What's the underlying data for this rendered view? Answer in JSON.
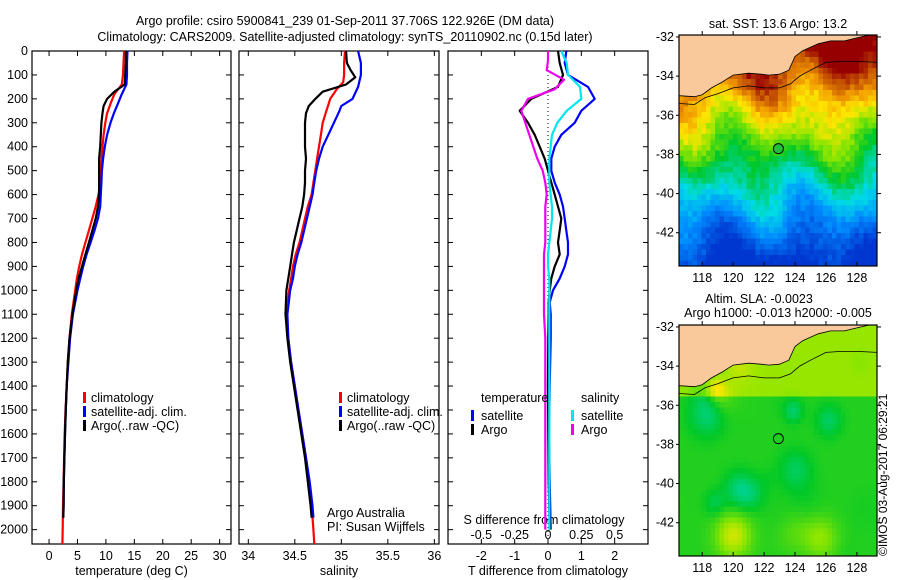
{
  "header": {
    "title_line1": "Argo profile: csiro 5900841_239 01-Sep-2011 37.706S 122.926E (DM data)",
    "title_line2": "Climatology: CARS2009. Satellite-adjusted climatology: synTS_20110902.nc (0.15d later)"
  },
  "colors": {
    "climatology": "#ff0000",
    "satellite": "#0000ff",
    "argo": "#000000",
    "sal_satellite": "#00e5ee",
    "sal_argo": "#ee00ee",
    "land": "#f9c89b"
  },
  "chart_data": [
    {
      "id": "temperature",
      "type": "line",
      "xlabel": "temperature (deg C)",
      "ylabel": "",
      "xlim": [
        -3,
        32
      ],
      "ylim": [
        2060,
        0
      ],
      "xticks": [
        0,
        5,
        10,
        15,
        20,
        25,
        30
      ],
      "yticks": [
        0,
        100,
        200,
        300,
        400,
        500,
        600,
        700,
        800,
        900,
        1000,
        1100,
        1200,
        1300,
        1400,
        1500,
        1600,
        1700,
        1800,
        1900,
        2000
      ],
      "legend": [
        "climatology",
        "satellite-adj. clim.",
        "Argo(..raw -QC)"
      ],
      "legend_placement": "center",
      "series": [
        {
          "name": "climatology",
          "color_key": "climatology",
          "depth": [
            0,
            50,
            100,
            140,
            180,
            220,
            260,
            300,
            350,
            400,
            450,
            500,
            550,
            600,
            650,
            700,
            750,
            800,
            850,
            900,
            950,
            1000,
            1100,
            1200,
            1300,
            1400,
            1500,
            1600,
            1700,
            1800,
            1900,
            2000,
            2060
          ],
          "values": [
            13.2,
            13.1,
            13.0,
            12.8,
            11.5,
            10.8,
            10.2,
            9.9,
            9.6,
            9.4,
            9.2,
            9.1,
            9.0,
            8.7,
            8.2,
            7.6,
            7.0,
            6.4,
            5.8,
            5.3,
            4.9,
            4.6,
            4.0,
            3.6,
            3.3,
            3.1,
            2.9,
            2.75,
            2.65,
            2.55,
            2.45,
            2.4,
            2.35
          ]
        },
        {
          "name": "satellite-adj. clim.",
          "color_key": "satellite",
          "depth": [
            0,
            50,
            100,
            140,
            180,
            220,
            260,
            300,
            350,
            400,
            450,
            500,
            550,
            600,
            650,
            700,
            750,
            800,
            850,
            900,
            950,
            1000,
            1100,
            1200,
            1300,
            1400,
            1500,
            1600,
            1700,
            1800,
            1900,
            1950
          ],
          "values": [
            13.8,
            13.7,
            13.7,
            13.6,
            12.8,
            12.1,
            11.4,
            10.8,
            10.2,
            9.8,
            9.5,
            9.3,
            9.2,
            9.1,
            9.0,
            8.6,
            8.0,
            7.3,
            6.6,
            6.0,
            5.5,
            5.0,
            4.2,
            3.7,
            3.4,
            3.1,
            2.95,
            2.8,
            2.7,
            2.6,
            2.55,
            2.5
          ]
        },
        {
          "name": "Argo(..raw -QC)",
          "color_key": "argo",
          "depth": [
            0,
            50,
            100,
            140,
            170,
            200,
            230,
            260,
            300,
            350,
            400,
            450,
            500,
            550,
            600,
            650,
            700,
            750,
            800,
            850,
            900,
            950,
            1000,
            1100,
            1200,
            1300,
            1400,
            1500,
            1600,
            1700,
            1800,
            1900,
            1950
          ],
          "values": [
            13.5,
            13.5,
            13.4,
            13.3,
            11.5,
            10.2,
            9.6,
            9.4,
            9.2,
            9.1,
            9.0,
            8.8,
            8.8,
            8.8,
            8.8,
            8.6,
            8.2,
            7.6,
            7.0,
            6.4,
            5.8,
            5.2,
            4.8,
            4.1,
            3.6,
            3.3,
            3.1,
            2.95,
            2.8,
            2.7,
            2.6,
            2.55,
            2.5
          ]
        }
      ]
    },
    {
      "id": "salinity",
      "type": "line",
      "xlabel": "salinity",
      "xlim": [
        33.9,
        36.05
      ],
      "ylim": [
        2060,
        0
      ],
      "xticks": [
        34,
        34.5,
        35,
        35.5,
        36
      ],
      "xtick_labels": [
        "34",
        "34.5",
        "35",
        "35.5",
        "36"
      ],
      "legend": [
        "climatology",
        "satellite-adj. clim.",
        "Argo(..raw -QC)"
      ],
      "legend_placement": "center-right",
      "annotation": [
        "Argo Australia",
        "PI: Susan Wijffels"
      ],
      "series": [
        {
          "name": "climatology",
          "color_key": "climatology",
          "depth": [
            0,
            50,
            100,
            130,
            160,
            200,
            250,
            300,
            350,
            400,
            450,
            500,
            550,
            600,
            650,
            700,
            750,
            800,
            850,
            900,
            950,
            1000,
            1100,
            1200,
            1300,
            1400,
            1500,
            1600,
            1700,
            1800,
            1900,
            2000,
            2060
          ],
          "values": [
            35.04,
            35.03,
            35.03,
            35.02,
            34.95,
            34.88,
            34.84,
            34.8,
            34.78,
            34.76,
            34.74,
            34.72,
            34.7,
            34.68,
            34.64,
            34.61,
            34.58,
            34.55,
            34.51,
            34.48,
            34.46,
            34.44,
            34.41,
            34.43,
            34.46,
            34.5,
            34.54,
            34.58,
            34.62,
            34.65,
            34.68,
            34.7,
            34.71
          ]
        },
        {
          "name": "satellite-adj. clim.",
          "color_key": "satellite",
          "depth": [
            0,
            50,
            100,
            150,
            200,
            230,
            250,
            300,
            350,
            400,
            450,
            500,
            550,
            600,
            650,
            700,
            750,
            800,
            850,
            900,
            950,
            1000,
            1100,
            1200,
            1300,
            1400,
            1500,
            1600,
            1700,
            1800,
            1900,
            1950
          ],
          "values": [
            35.18,
            35.21,
            35.21,
            35.18,
            35.12,
            35.0,
            34.98,
            34.92,
            34.86,
            34.8,
            34.76,
            34.73,
            34.71,
            34.69,
            34.66,
            34.63,
            34.6,
            34.57,
            34.53,
            34.5,
            34.48,
            34.45,
            34.42,
            34.43,
            34.46,
            34.5,
            34.54,
            34.58,
            34.62,
            34.66,
            34.69,
            34.7
          ]
        },
        {
          "name": "Argo(..raw -QC)",
          "color_key": "argo",
          "depth": [
            0,
            50,
            80,
            110,
            140,
            170,
            200,
            230,
            260,
            300,
            350,
            400,
            450,
            500,
            550,
            600,
            650,
            700,
            750,
            800,
            850,
            900,
            950,
            1000,
            1100,
            1200,
            1300,
            1400,
            1500,
            1600,
            1700,
            1800,
            1900,
            1950
          ],
          "values": [
            35.05,
            35.06,
            35.1,
            35.15,
            35.05,
            34.8,
            34.72,
            34.65,
            34.62,
            34.61,
            34.61,
            34.61,
            34.62,
            34.61,
            34.61,
            34.6,
            34.58,
            34.55,
            34.52,
            34.49,
            34.47,
            34.45,
            34.43,
            34.41,
            34.4,
            34.42,
            34.45,
            34.49,
            34.53,
            34.57,
            34.61,
            34.64,
            34.67,
            34.68
          ]
        }
      ]
    },
    {
      "id": "difference",
      "type": "line",
      "xlabel": "T difference from climatology",
      "xlabel_top": "S difference from climatology",
      "xlim": [
        -3,
        3
      ],
      "ylim": [
        2060,
        0
      ],
      "xticks": [
        -2,
        -1,
        0,
        1,
        2
      ],
      "s_xlim": [
        -0.75,
        0.75
      ],
      "s_xticks": [
        -0.5,
        -0.25,
        0,
        0.25,
        0.5
      ],
      "s_xtick_labels": [
        "-0.5",
        "-0.25",
        "0",
        "0.25",
        "0.5"
      ],
      "zero_line": "dotted",
      "legend_groups": [
        {
          "title": "temperature",
          "items": [
            "satellite",
            "Argo"
          ]
        },
        {
          "title": "salinity",
          "items": [
            "satellite",
            "Argo"
          ]
        }
      ],
      "series": [
        {
          "name": "temperature satellite",
          "color_key": "satellite",
          "axis": "T",
          "depth": [
            0,
            50,
            100,
            150,
            200,
            250,
            300,
            350,
            400,
            450,
            500,
            550,
            600,
            650,
            700,
            750,
            800,
            850,
            900,
            950,
            1000,
            1050,
            1100,
            1200,
            1400,
            1600,
            1800,
            2000
          ],
          "values": [
            0.55,
            0.5,
            0.6,
            1.2,
            1.4,
            1.0,
            0.8,
            0.4,
            0.2,
            0.1,
            0.1,
            0.2,
            0.35,
            0.45,
            0.5,
            0.55,
            0.6,
            0.6,
            0.5,
            0.35,
            0.15,
            0.05,
            0.08,
            0.08,
            0.05,
            0.03,
            0.05,
            0.08
          ]
        },
        {
          "name": "temperature Argo",
          "color_key": "argo",
          "axis": "T",
          "depth": [
            0,
            50,
            100,
            150,
            200,
            250,
            300,
            350,
            400,
            450,
            500,
            550,
            600,
            650,
            700,
            750,
            800,
            850,
            900,
            950,
            1000,
            1050,
            1100,
            1200,
            1400,
            1600,
            1800,
            2000
          ],
          "values": [
            0.3,
            0.35,
            0.45,
            0.3,
            -0.5,
            -0.85,
            -0.6,
            -0.4,
            -0.25,
            -0.1,
            0.0,
            0.1,
            0.2,
            0.3,
            0.4,
            0.35,
            0.3,
            0.35,
            0.2,
            0.1,
            0.05,
            0.02,
            0.02,
            0.01,
            0.0,
            0.01,
            0.02,
            0.05
          ]
        },
        {
          "name": "salinity satellite",
          "color_key": "sal_satellite",
          "axis": "S",
          "depth": [
            0,
            50,
            100,
            150,
            200,
            250,
            300,
            350,
            400,
            450,
            500,
            550,
            600,
            650,
            700,
            750,
            800,
            850,
            900,
            950,
            1000,
            1100,
            1200,
            1400,
            1600,
            1800,
            2000
          ],
          "values": [
            0.1,
            0.14,
            0.15,
            0.24,
            0.25,
            0.14,
            0.07,
            0.03,
            0.02,
            0.01,
            0.01,
            0.01,
            0.02,
            0.03,
            0.03,
            0.02,
            0.01,
            0.0,
            0.0,
            0.01,
            0.01,
            0.01,
            0.01,
            0.01,
            0.01,
            0.01,
            0.01
          ]
        },
        {
          "name": "salinity Argo",
          "color_key": "sal_argo",
          "axis": "S",
          "depth": [
            0,
            40,
            80,
            120,
            160,
            200,
            250,
            300,
            350,
            400,
            450,
            500,
            550,
            600,
            650,
            700,
            750,
            800,
            850,
            900,
            950,
            1000,
            1100,
            1200,
            1400,
            1600,
            1800,
            2000
          ],
          "values": [
            0.0,
            0.0,
            -0.01,
            0.12,
            0.05,
            -0.15,
            -0.2,
            -0.17,
            -0.14,
            -0.11,
            -0.08,
            -0.04,
            -0.02,
            -0.01,
            -0.02,
            -0.02,
            -0.02,
            -0.02,
            -0.03,
            -0.03,
            -0.03,
            -0.03,
            -0.03,
            -0.02,
            -0.02,
            -0.02,
            -0.02,
            -0.02
          ]
        }
      ]
    },
    {
      "id": "sst-map",
      "type": "heatmap",
      "title": "sat. SST: 13.6 Argo: 13.2",
      "xlim": [
        116.5,
        129.3
      ],
      "ylim": [
        -43.7,
        -31.9
      ],
      "xticks": [
        118,
        120,
        122,
        124,
        126,
        128
      ],
      "yticks": [
        -32,
        -34,
        -36,
        -38,
        -40,
        -42
      ],
      "marker": {
        "lon": 122.926,
        "lat": -37.706
      },
      "colormap": "jet-like, warm north (dark red) to cool south (blue)"
    },
    {
      "id": "sla-map",
      "type": "heatmap",
      "title_line1": "Altim. SLA: -0.0023",
      "title_line2": "Argo h1000: -0.013 h2000: -0.005",
      "xlim": [
        116.5,
        129.3
      ],
      "ylim": [
        -43.7,
        -31.9
      ],
      "xticks": [
        118,
        120,
        122,
        124,
        126,
        128
      ],
      "yticks": [
        -32,
        -34,
        -36,
        -38,
        -40,
        -42
      ],
      "marker": {
        "lon": 122.926,
        "lat": -37.706
      },
      "colormap": "green-dominant with yellow highs and teal lows"
    }
  ],
  "footer": {
    "copyright": "©IMOS 03-Aug-2017 06:29:21"
  }
}
